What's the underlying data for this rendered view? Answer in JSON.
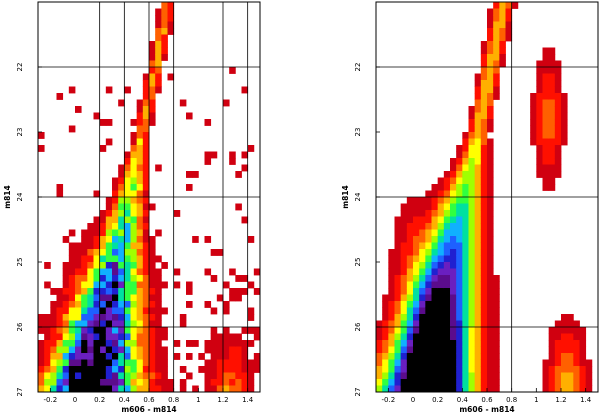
{
  "chart_data": [
    {
      "type": "heatmap",
      "panel": "left",
      "xlabel": "m606 - m814",
      "ylabel": "m814",
      "xlim": [
        -0.3,
        1.5
      ],
      "ylim": [
        27,
        21
      ],
      "y_inverted": true,
      "xticks": [
        -0.2,
        0,
        0.2,
        0.4,
        0.6,
        0.8,
        1,
        1.2,
        1.4
      ],
      "xtick_labels": [
        "-0.2",
        "0",
        "0.2",
        "0.4",
        "0.6",
        "0.8",
        "1",
        "1.2",
        "1.4"
      ],
      "yticks": [
        22,
        23,
        24,
        25,
        26,
        27
      ],
      "ytick_labels": [
        "22",
        "23",
        "24",
        "25",
        "26",
        "27"
      ],
      "grid": true,
      "grid_x": [
        0.2,
        0.4,
        0.6,
        0.8,
        1.2,
        1.4
      ],
      "grid_y": [
        22,
        24,
        26
      ],
      "bin_size_color": 0.05,
      "bin_size_mag": 0.1,
      "colormap": [
        "#000000",
        "#5b0c8c",
        "#6a1fc0",
        "#2020d0",
        "#1e60ff",
        "#10b0ff",
        "#00e0a0",
        "#30ff40",
        "#a0ff00",
        "#ffff00",
        "#ffb000",
        "#ff6000",
        "#ff1000",
        "#d00010",
        "#c86060"
      ],
      "description": "color-magnitude diagram density"
    },
    {
      "type": "heatmap",
      "panel": "right",
      "xlabel": "m606 - m814",
      "ylabel": "m814",
      "xlim": [
        -0.3,
        1.5
      ],
      "ylim": [
        27,
        21
      ],
      "y_inverted": true,
      "xticks": [
        -0.2,
        0,
        0.2,
        0.4,
        0.6,
        0.8,
        1,
        1.2,
        1.4
      ],
      "xtick_labels": [
        "-0.2",
        "0",
        "0.2",
        "0.4",
        "0.6",
        "0.8",
        "1",
        "1.2",
        "1.4"
      ],
      "yticks": [
        22,
        23,
        24,
        25,
        26,
        27
      ],
      "ytick_labels": [
        "22",
        "23",
        "24",
        "25",
        "26",
        "27"
      ],
      "grid": true,
      "grid_x": [
        0.8
      ],
      "grid_y": [
        22,
        24,
        26
      ],
      "bin_size_color": 0.05,
      "bin_size_mag": 0.1,
      "colormap": [
        "#000000",
        "#5b0c8c",
        "#6a1fc0",
        "#2020d0",
        "#1e60ff",
        "#10b0ff",
        "#00e0a0",
        "#30ff40",
        "#a0ff00",
        "#ffff00",
        "#ffb000",
        "#ff6000",
        "#ff1000",
        "#d00010",
        "#f0a0a0"
      ],
      "description": "smoothed model color-magnitude density"
    }
  ]
}
